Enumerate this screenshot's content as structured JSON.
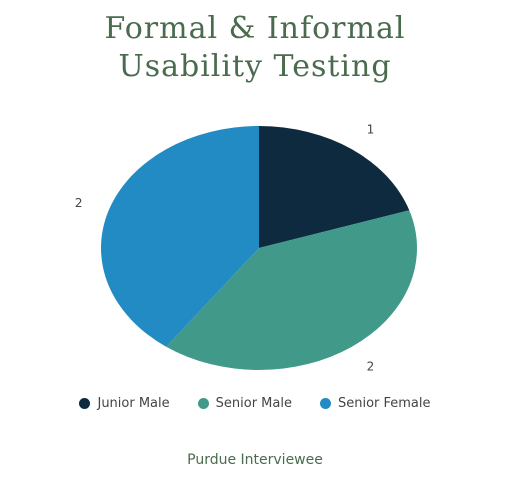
{
  "chart_data": {
    "type": "pie",
    "title_lines": [
      "Formal & Informal",
      "Usability Testing"
    ],
    "categories": [
      "Junior Male",
      "Senior Male",
      "Senior Female"
    ],
    "values": [
      1,
      2,
      2
    ],
    "colors": [
      "#0d2a3f",
      "#419a89",
      "#228bc3"
    ],
    "data_labels": [
      "1",
      "2",
      "2"
    ],
    "legend_position": "bottom",
    "footer": "Purdue Interviewee"
  }
}
